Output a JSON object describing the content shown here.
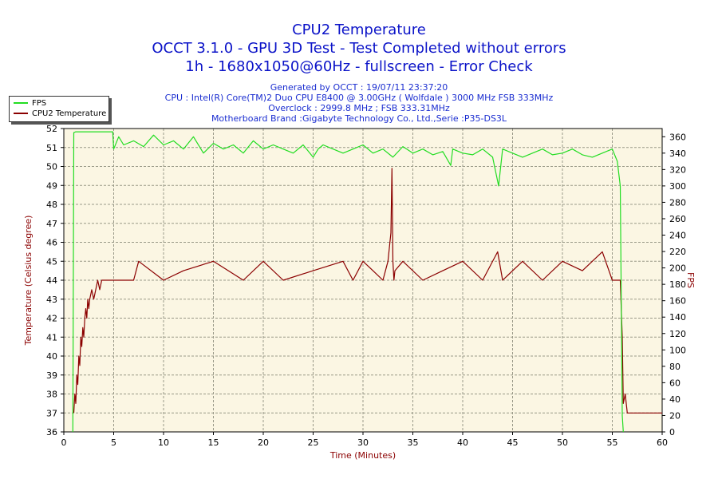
{
  "header": {
    "title": "CPU2 Temperature",
    "line2": "OCCT 3.1.0 - GPU 3D Test - Test Completed without errors",
    "line3": "1h - 1680x1050@60Hz - fullscreen - Error Check",
    "generated": "Generated by OCCT : 19/07/11 23:37:20",
    "cpu": "CPU : Intel(R) Core(TM)2 Duo CPU E8400 @ 3.00GHz ( Wolfdale ) 3000 MHz FSB 333MHz",
    "overclock": "Overclock : 2999.8 MHz ; FSB 333.31MHz",
    "motherboard": "Motherboard Brand :Gigabyte Technology Co., Ltd.,Serie :P35-DS3L"
  },
  "legend": {
    "fps_label": "FPS",
    "temp_label": "CPU2 Temperature"
  },
  "chart_data": {
    "type": "line",
    "xlabel": "Time (Minutes)",
    "ylabel": "Temperature (Celsius degree)",
    "y2label": "FPS",
    "xlim": [
      0,
      60
    ],
    "ylim": [
      36,
      52
    ],
    "y2lim": [
      0,
      370
    ],
    "x_ticks": [
      0,
      5,
      10,
      15,
      20,
      25,
      30,
      35,
      40,
      45,
      50,
      55,
      60
    ],
    "y_ticks": [
      36,
      37,
      38,
      39,
      40,
      41,
      42,
      43,
      44,
      45,
      46,
      47,
      48,
      49,
      50,
      51,
      52
    ],
    "y2_ticks": [
      0,
      20,
      40,
      60,
      80,
      100,
      120,
      140,
      160,
      180,
      200,
      220,
      240,
      260,
      280,
      300,
      320,
      340,
      360
    ],
    "grid": true,
    "legend_position": "top-left",
    "colors": {
      "fps": "#22dd22",
      "temperature": "#8b0000",
      "plot_bg": "#fbf6e3",
      "grid": "#999988",
      "axis_label": "#8b0000",
      "title": "#0b13c8"
    },
    "series": [
      {
        "name": "CPU2 Temperature",
        "axis": "left",
        "x": [
          1.0,
          1.1,
          1.2,
          1.3,
          1.4,
          1.5,
          1.6,
          1.7,
          1.8,
          1.9,
          2.0,
          2.1,
          2.2,
          2.3,
          2.4,
          2.5,
          2.6,
          2.8,
          3.0,
          3.2,
          3.4,
          3.6,
          3.8,
          4.0,
          4.3,
          4.6,
          5.0,
          7.0,
          7.5,
          10.0,
          12.0,
          15.0,
          18.0,
          20.0,
          22.0,
          25.0,
          28.0,
          29.0,
          30.0,
          31.0,
          32.0,
          32.5,
          32.8,
          32.9,
          33.0,
          33.1,
          33.2,
          34.0,
          36.0,
          38.0,
          40.0,
          42.0,
          43.5,
          44.0,
          46.0,
          48.0,
          50.0,
          52.0,
          54.0,
          55.0,
          55.8,
          56.0,
          56.1,
          56.3,
          56.5,
          57.0,
          60.0
        ],
        "values": [
          37.0,
          38.0,
          37.5,
          39.0,
          38.5,
          40.0,
          39.5,
          41.0,
          40.5,
          41.5,
          41.0,
          42.0,
          42.5,
          42.0,
          43.0,
          42.5,
          43.0,
          43.5,
          43.0,
          43.5,
          44.0,
          43.5,
          44.0,
          44.0,
          44.0,
          44.0,
          44.0,
          44.0,
          45.0,
          44.0,
          44.5,
          45.0,
          44.0,
          45.0,
          44.0,
          44.5,
          45.0,
          44.0,
          45.0,
          44.5,
          44.0,
          45.0,
          46.5,
          49.9,
          45.0,
          44.0,
          44.5,
          45.0,
          44.0,
          44.5,
          45.0,
          44.0,
          45.5,
          44.0,
          45.0,
          44.0,
          45.0,
          44.5,
          45.5,
          44.0,
          44.0,
          41.0,
          37.5,
          38.0,
          37.0,
          37.0,
          37.0
        ]
      },
      {
        "name": "FPS",
        "axis": "right",
        "x": [
          0.9,
          1.0,
          1.2,
          2.0,
          3.0,
          4.0,
          4.9,
          5.0,
          5.5,
          6.0,
          7.0,
          8.0,
          9.0,
          10.0,
          11.0,
          12.0,
          13.0,
          14.0,
          15.0,
          16.0,
          17.0,
          18.0,
          19.0,
          20.0,
          21.0,
          22.0,
          23.0,
          24.0,
          25.0,
          25.5,
          26.0,
          27.0,
          28.0,
          29.0,
          30.0,
          31.0,
          32.0,
          33.0,
          34.0,
          35.0,
          36.0,
          37.0,
          38.0,
          38.8,
          39.0,
          40.0,
          41.0,
          42.0,
          43.0,
          43.6,
          44.0,
          45.0,
          46.0,
          47.0,
          48.0,
          49.0,
          50.0,
          51.0,
          52.0,
          53.0,
          54.0,
          55.0,
          55.5,
          55.8,
          56.0,
          56.1
        ],
        "values": [
          0,
          365,
          366,
          366,
          366,
          366,
          366,
          345,
          360,
          350,
          355,
          348,
          362,
          350,
          355,
          345,
          360,
          340,
          352,
          345,
          350,
          340,
          355,
          345,
          350,
          345,
          340,
          350,
          335,
          345,
          350,
          345,
          340,
          345,
          350,
          340,
          345,
          335,
          348,
          340,
          345,
          338,
          342,
          325,
          345,
          340,
          338,
          345,
          335,
          300,
          345,
          340,
          335,
          340,
          345,
          338,
          340,
          345,
          338,
          335,
          340,
          345,
          330,
          300,
          20,
          0
        ]
      }
    ]
  }
}
